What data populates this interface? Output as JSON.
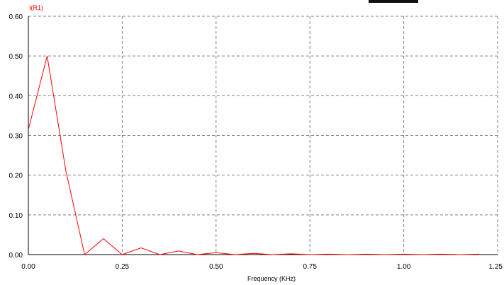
{
  "chart_data": {
    "type": "line",
    "title": "",
    "xlabel": "Frequency (KHz)",
    "ylabel": "",
    "xlim": [
      0,
      1.25
    ],
    "ylim": [
      0,
      0.6
    ],
    "grid": true,
    "x_ticks": [
      "0.00",
      "0.25",
      "0.50",
      "0.75",
      "1.00",
      "1.25"
    ],
    "y_ticks": [
      "0.00",
      "0.10",
      "0.20",
      "0.30",
      "0.40",
      "0.50",
      "0.60"
    ],
    "series": [
      {
        "name": "I(R1)",
        "color": "#ff0000",
        "x": [
          0,
          0.05,
          0.1,
          0.15,
          0.2,
          0.25,
          0.3,
          0.35,
          0.4,
          0.45,
          0.5,
          0.55,
          0.6,
          0.65,
          0.7,
          0.75,
          0.8,
          0.85,
          0.9,
          0.95,
          1.0,
          1.05,
          1.1,
          1.15,
          1.2
        ],
        "y": [
          0.315,
          0.5,
          0.21,
          0.0,
          0.04,
          0.0,
          0.017,
          0.0,
          0.009,
          0.0,
          0.005,
          0.0,
          0.003,
          0.0,
          0.002,
          0.0,
          0.001,
          0.0,
          0.001,
          0.0,
          0.001,
          0.0,
          0.001,
          0.0,
          0.001
        ]
      }
    ]
  }
}
